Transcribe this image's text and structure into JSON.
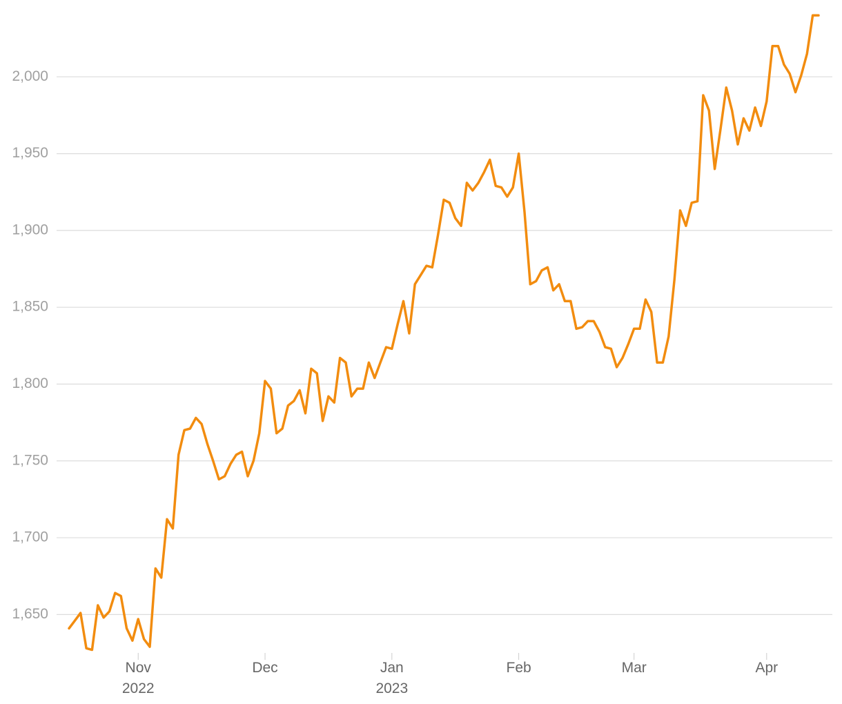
{
  "chart_data": {
    "type": "line",
    "categories": [
      null,
      null,
      null,
      null,
      null,
      null,
      null,
      null,
      null,
      null,
      null,
      null,
      "Nov\n2022",
      null,
      null,
      null,
      null,
      null,
      null,
      null,
      null,
      null,
      null,
      null,
      null,
      null,
      null,
      null,
      null,
      null,
      null,
      null,
      null,
      null,
      "Dec",
      null,
      null,
      null,
      null,
      null,
      null,
      null,
      null,
      null,
      null,
      null,
      null,
      null,
      null,
      null,
      null,
      null,
      null,
      null,
      null,
      null,
      "Jan\n2023",
      null,
      null,
      null,
      null,
      null,
      null,
      null,
      null,
      null,
      null,
      null,
      null,
      null,
      null,
      null,
      null,
      null,
      null,
      null,
      null,
      null,
      "Feb",
      null,
      null,
      null,
      null,
      null,
      null,
      null,
      null,
      null,
      null,
      null,
      null,
      null,
      null,
      null,
      null,
      null,
      null,
      null,
      "Mar",
      null,
      null,
      null,
      null,
      null,
      null,
      null,
      null,
      null,
      null,
      null,
      null,
      null,
      null,
      null,
      null,
      null,
      null,
      null,
      null,
      null,
      null,
      "Apr",
      null,
      null,
      null,
      null,
      null,
      null,
      null,
      null,
      null
    ],
    "values": [
      1641,
      1646,
      1651,
      1628,
      1627,
      1656,
      1648,
      1652,
      1664,
      1662,
      1641,
      1633,
      1647,
      1634,
      1629,
      1680,
      1674,
      1712,
      1706,
      1754,
      1770,
      1771,
      1778,
      1774,
      1761,
      1750,
      1738,
      1740,
      1748,
      1754,
      1756,
      1740,
      1750,
      1768,
      1802,
      1797,
      1768,
      1771,
      1786,
      1789,
      1796,
      1781,
      1810,
      1807,
      1776,
      1792,
      1788,
      1817,
      1814,
      1792,
      1797,
      1797,
      1814,
      1804,
      1814,
      1824,
      1823,
      1839,
      1854,
      1833,
      1865,
      1871,
      1877,
      1876,
      1897,
      1920,
      1918,
      1908,
      1903,
      1931,
      1926,
      1931,
      1938,
      1946,
      1929,
      1928,
      1922,
      1928,
      1950,
      1912,
      1865,
      1867,
      1874,
      1876,
      1861,
      1865,
      1854,
      1854,
      1836,
      1837,
      1841,
      1841,
      1834,
      1824,
      1823,
      1811,
      1817,
      1826,
      1836,
      1836,
      1855,
      1847,
      1814,
      1814,
      1831,
      1868,
      1913,
      1903,
      1918,
      1919,
      1988,
      1978,
      1940,
      1966,
      1993,
      1978,
      1956,
      1973,
      1965,
      1980,
      1968,
      1984,
      2020,
      2020,
      2008,
      2002,
      1990,
      2001,
      2015,
      2040,
      2040
    ],
    "color": "#f28c0f",
    "ylim": [
      1625,
      2050
    ],
    "yticks": [
      {
        "value": 1650,
        "label": "1,650"
      },
      {
        "value": 1700,
        "label": "1,700"
      },
      {
        "value": 1750,
        "label": "1,750"
      },
      {
        "value": 1800,
        "label": "1,800"
      },
      {
        "value": 1850,
        "label": "1,850"
      },
      {
        "value": 1900,
        "label": "1,900"
      },
      {
        "value": 1950,
        "label": "1,950"
      },
      {
        "value": 2000,
        "label": "2,000"
      }
    ],
    "grid": true
  }
}
